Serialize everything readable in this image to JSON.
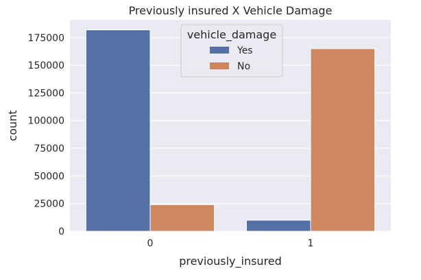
{
  "chart_data": {
    "type": "bar",
    "title": "Previously insured X Vehicle Damage",
    "xlabel": "previously_insured",
    "ylabel": "count",
    "categories": [
      "0",
      "1"
    ],
    "series": [
      {
        "name": "Yes",
        "values": [
          182000,
          10000
        ],
        "color": "#5471a6"
      },
      {
        "name": "No",
        "values": [
          24000,
          165000
        ],
        "color": "#cf875f"
      }
    ],
    "ylim": [
      0,
      191000
    ],
    "yticks": [
      0,
      25000,
      50000,
      75000,
      100000,
      125000,
      150000,
      175000
    ],
    "grid": true,
    "legend_title": "vehicle_damage",
    "legend_position": "top-center",
    "background_color": "#eaeaf2",
    "grid_color": "#ffffff"
  }
}
